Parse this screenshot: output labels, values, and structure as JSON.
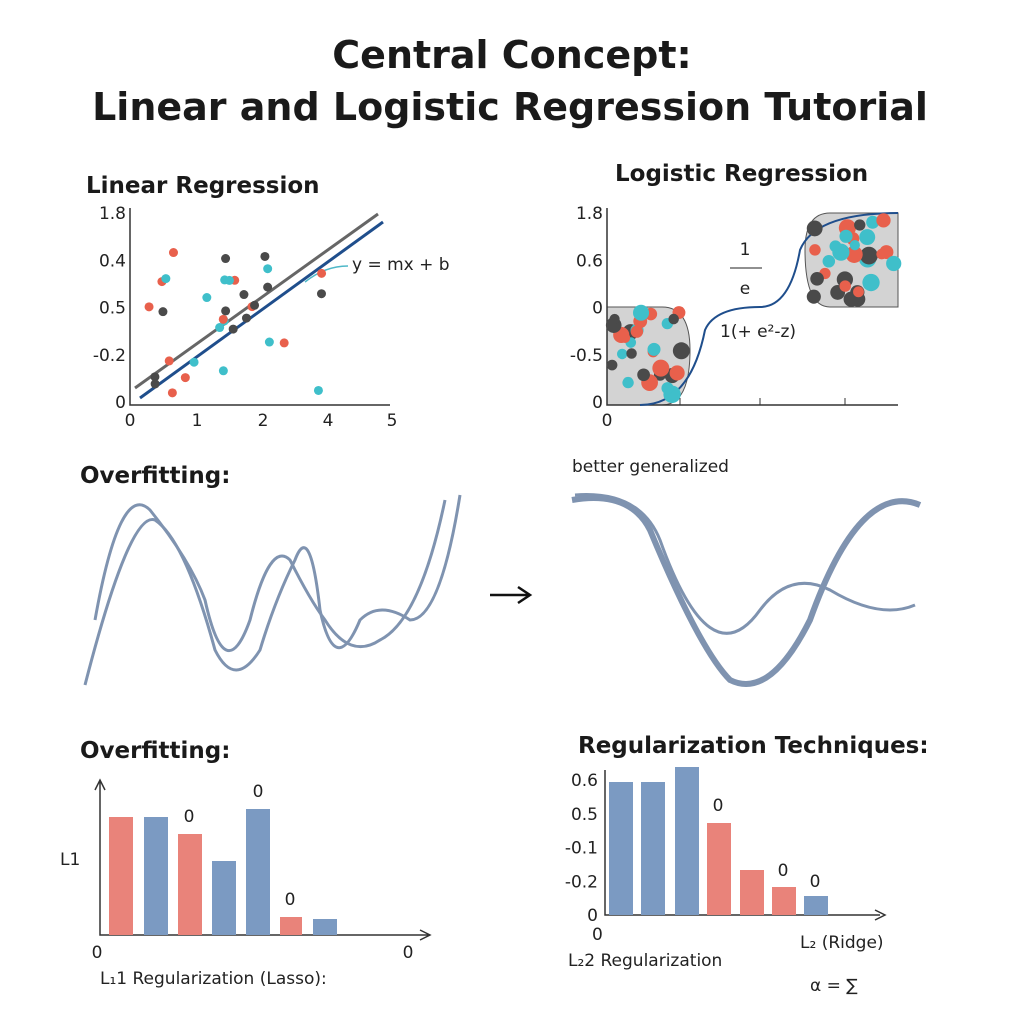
{
  "header": {
    "title_line1": "Central Concept:",
    "title_line2": "Linear and Logistic Regression Tutorial"
  },
  "linear": {
    "title": "Linear Regression",
    "y_labels": [
      "1.8",
      "0.4",
      "0.5",
      "-0.2",
      "0"
    ],
    "x_labels": [
      "0",
      "1",
      "2",
      "4",
      "5"
    ],
    "annotation": "y = mx + b"
  },
  "logistic": {
    "title": "Logistic Regression",
    "y_labels": [
      "1.8",
      "0.6",
      "0",
      "-0.5",
      "0"
    ],
    "x_labels": [
      "0"
    ],
    "fraction_top": "1",
    "fraction_bottom": "e",
    "formula": "1(+ e²-z)"
  },
  "overfit": {
    "title": "Overfitting:",
    "caption": "better generalized"
  },
  "lasso": {
    "title": "Overfitting:",
    "axis_label": "L1",
    "bar_labels": [
      "0",
      "0",
      "0"
    ],
    "x_left": "0",
    "x_right": "0",
    "caption": "L₁1 Regularization (Lasso):"
  },
  "ridge": {
    "title": "Regularization Techniques:",
    "y_labels": [
      "0.6",
      "0.5",
      "-0.1",
      "-0.2",
      "0"
    ],
    "bar_labels": [
      "0",
      "0",
      "0"
    ],
    "axis_label": "L₂ (Ridge)",
    "caption": "L₂2 Regularization",
    "formula": "α = ∑"
  }
}
